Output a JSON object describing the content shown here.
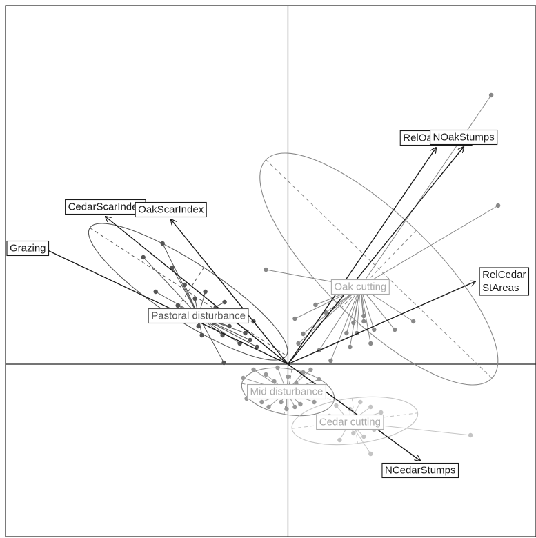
{
  "chart_data": {
    "type": "scatter",
    "title": "",
    "xlabel": "",
    "ylabel": "",
    "xlim": [
      -4.1,
      3.6
    ],
    "ylim": [
      -2.5,
      5.2
    ],
    "grid": false,
    "origin_axes": true,
    "colors": {
      "frame": "#222222",
      "arrow": "#1a1a1a",
      "pastoral": "#555555",
      "oak": "#888888",
      "mid": "#999999",
      "cedar": "#c4c4c4",
      "centroid": "#aaaaaa"
    },
    "vectors": [
      {
        "label": "CedarScarIndex",
        "x": -2.65,
        "y": 2.14
      },
      {
        "label": "OakScarIndex",
        "x": -1.7,
        "y": 2.1
      },
      {
        "label": "Grazing",
        "x": -3.55,
        "y": 1.68
      },
      {
        "label": "RelOakStArea",
        "x": 2.15,
        "y": 3.14
      },
      {
        "label": "NOakStumps",
        "x": 2.55,
        "y": 3.15
      },
      {
        "label": "RelCedar StAreas",
        "x": 2.72,
        "y": 1.2
      },
      {
        "label": "NCedarStumps",
        "x": 1.92,
        "y": -1.4
      }
    ],
    "groups": [
      {
        "name": "Pastoral disturbance",
        "color_key": "pastoral",
        "centroid": [
          -1.3,
          0.7
        ],
        "ellipse": {
          "cx": -1.45,
          "cy": 1.05,
          "rx": 1.7,
          "ry": 0.42,
          "angle_deg": -33
        },
        "points": [
          [
            -2.1,
            1.55
          ],
          [
            -1.82,
            1.75
          ],
          [
            -1.68,
            1.4
          ],
          [
            -1.92,
            1.05
          ],
          [
            -1.5,
            1.15
          ],
          [
            -1.35,
            0.95
          ],
          [
            -1.6,
            0.85
          ],
          [
            -1.2,
            1.05
          ],
          [
            -1.05,
            0.82
          ],
          [
            -1.3,
            0.55
          ],
          [
            -1.18,
            0.62
          ],
          [
            -1.08,
            0.6
          ],
          [
            -0.85,
            0.55
          ],
          [
            -0.72,
            0.75
          ],
          [
            -0.92,
            0.9
          ],
          [
            -0.62,
            0.45
          ],
          [
            -0.55,
            0.35
          ],
          [
            -0.45,
            0.25
          ],
          [
            -0.5,
            0.62
          ],
          [
            -1.35,
            0.7
          ],
          [
            -1.25,
            0.42
          ],
          [
            -0.95,
            0.42
          ],
          [
            -0.7,
            0.3
          ],
          [
            -0.93,
            0.02
          ]
        ]
      },
      {
        "name": "Oak cutting",
        "color_key": "oak",
        "centroid": [
          1.05,
          1.12
        ],
        "ellipse": {
          "cx": 1.32,
          "cy": 1.38,
          "rx": 2.28,
          "ry": 0.78,
          "angle_deg": -44
        },
        "points": [
          [
            2.95,
            3.9
          ],
          [
            3.05,
            2.3
          ],
          [
            -0.32,
            1.37
          ],
          [
            1.82,
            0.62
          ],
          [
            1.55,
            0.5
          ],
          [
            1.1,
            0.62
          ],
          [
            0.4,
            0.86
          ],
          [
            0.1,
            0.66
          ],
          [
            0.55,
            0.75
          ],
          [
            0.95,
            0.6
          ],
          [
            0.85,
            0.45
          ],
          [
            1.0,
            0.45
          ],
          [
            1.2,
            0.3
          ],
          [
            1.25,
            0.5
          ],
          [
            0.22,
            0.44
          ],
          [
            0.15,
            0.3
          ],
          [
            0.62,
            0.05
          ],
          [
            0.45,
            0.2
          ],
          [
            0.9,
            0.25
          ],
          [
            1.1,
            0.7
          ]
        ]
      },
      {
        "name": "Mid disturbance",
        "color_key": "mid",
        "centroid": [
          -0.02,
          -0.4
        ],
        "ellipse": {
          "cx": 0.0,
          "cy": -0.4,
          "rx": 0.68,
          "ry": 0.33,
          "angle_deg": -10
        },
        "points": [
          [
            -0.65,
            -0.2
          ],
          [
            -0.6,
            -0.5
          ],
          [
            -0.5,
            -0.08
          ],
          [
            -0.45,
            -0.32
          ],
          [
            -0.38,
            -0.55
          ],
          [
            -0.32,
            -0.15
          ],
          [
            -0.25,
            -0.45
          ],
          [
            -0.2,
            -0.25
          ],
          [
            -0.15,
            -0.05
          ],
          [
            -0.1,
            -0.55
          ],
          [
            -0.05,
            -0.35
          ],
          [
            0.0,
            -0.18
          ],
          [
            0.05,
            -0.48
          ],
          [
            0.12,
            -0.28
          ],
          [
            0.18,
            -0.58
          ],
          [
            0.22,
            -0.12
          ],
          [
            0.3,
            -0.38
          ],
          [
            0.38,
            -0.55
          ],
          [
            0.45,
            -0.22
          ],
          [
            0.52,
            -0.46
          ],
          [
            -0.02,
            -0.65
          ],
          [
            -0.28,
            -0.62
          ],
          [
            0.1,
            -0.62
          ],
          [
            -0.42,
            -0.4
          ],
          [
            0.33,
            -0.08
          ]
        ]
      },
      {
        "name": "Cedar cutting",
        "color_key": "cedar",
        "centroid": [
          0.9,
          -0.84
        ],
        "ellipse": {
          "cx": 0.97,
          "cy": -0.82,
          "rx": 0.92,
          "ry": 0.33,
          "angle_deg": 7
        },
        "points": [
          [
            0.7,
            -0.6
          ],
          [
            0.9,
            -0.65
          ],
          [
            1.05,
            -0.55
          ],
          [
            1.2,
            -0.62
          ],
          [
            1.35,
            -0.7
          ],
          [
            0.6,
            -0.75
          ],
          [
            0.8,
            -0.8
          ],
          [
            0.95,
            -1.0
          ],
          [
            1.1,
            -1.05
          ],
          [
            1.25,
            -0.95
          ],
          [
            0.75,
            -1.1
          ],
          [
            1.2,
            -1.3
          ],
          [
            2.65,
            -1.03
          ]
        ]
      }
    ],
    "ellipse_color_key": {
      "Pastoral disturbance": "pastoral",
      "Oak cutting": "oak",
      "Mid disturbance": "oak",
      "Cedar cutting": "cedar"
    }
  }
}
